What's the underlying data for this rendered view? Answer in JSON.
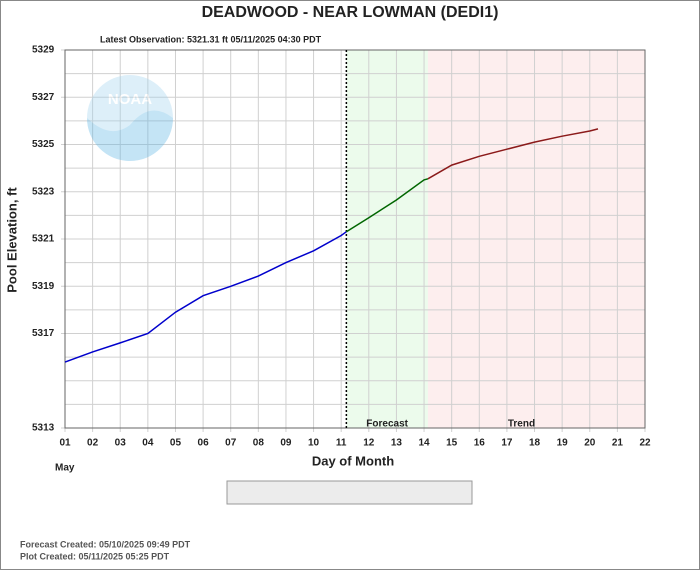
{
  "chart_data": {
    "type": "line",
    "title": "DEADWOOD - NEAR LOWMAN  (DEDI1)",
    "subtitle": "Latest Observation: 5321.31 ft 05/11/2025 04:30 PDT",
    "y_label": "Pool Elevation, ft",
    "x_label": "Day of Month",
    "x_sublabel": "May",
    "logo_text": "NOAA",
    "footer": [
      "Forecast Created: 05/10/2025 09:49 PDT",
      "Plot Created: 05/11/2025 05:25 PDT"
    ],
    "xlim": [
      1,
      22
    ],
    "xticks": [
      {
        "value": 1,
        "label": "01"
      },
      {
        "value": 2,
        "label": "02"
      },
      {
        "value": 3,
        "label": "03"
      },
      {
        "value": 4,
        "label": "04"
      },
      {
        "value": 5,
        "label": "05"
      },
      {
        "value": 6,
        "label": "06"
      },
      {
        "value": 7,
        "label": "07"
      },
      {
        "value": 8,
        "label": "08"
      },
      {
        "value": 9,
        "label": "09"
      },
      10,
      11,
      12,
      13,
      14,
      15,
      16,
      17,
      18,
      19,
      20,
      21,
      22
    ],
    "ylim": [
      5313,
      5329
    ],
    "yticks": [
      5313,
      5317,
      5319,
      5321,
      5323,
      5325,
      5327,
      5329
    ],
    "ygrid": [
      5314,
      5315,
      5316,
      5318,
      5320,
      5322,
      5324,
      5326,
      5328
    ],
    "latest_x": 11.1875,
    "regions": [
      {
        "name": "Forecast",
        "xlim": [
          11.1875,
          14.14
        ],
        "color": "#ecfbec"
      },
      {
        "name": "Trend",
        "xlim": [
          14.14,
          22
        ],
        "color": "#fdeeee"
      }
    ],
    "series": [
      {
        "name": "Observation",
        "color": "#0000cc",
        "x": [
          1,
          2,
          3,
          4,
          5,
          6,
          7,
          8,
          9,
          10,
          11,
          11.1875
        ],
        "values": [
          5315.79,
          5316.22,
          5316.6,
          5317.0,
          5317.9,
          5318.6,
          5319.0,
          5319.43,
          5320.0,
          5320.5,
          5321.15,
          5321.31
        ]
      },
      {
        "name": "Trend",
        "color": "#8b1a1a",
        "x": [
          14.14,
          15,
          16,
          17,
          18,
          19,
          20,
          20.3
        ],
        "values": [
          5323.55,
          5324.13,
          5324.5,
          5324.8,
          5325.1,
          5325.35,
          5325.57,
          5325.66
        ]
      },
      {
        "name": "Forecast",
        "color": "#006600",
        "x": [
          11.1875,
          12,
          13,
          14,
          14.14
        ],
        "values": [
          5321.31,
          5321.9,
          5322.65,
          5323.5,
          5323.55
        ]
      }
    ]
  }
}
